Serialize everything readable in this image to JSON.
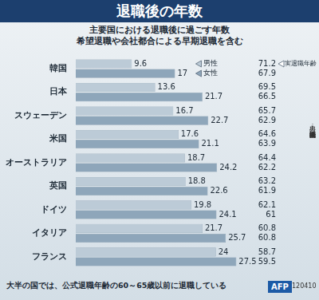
{
  "chart_data": {
    "type": "bar",
    "orientation": "horizontal",
    "title": "退職後の年数",
    "subtitle": [
      "主要国における退職後に過ごす年数",
      "希望退職や会社都合による早期退職を含む"
    ],
    "categories": [
      "韓国",
      "日本",
      "スウェーデン",
      "米国",
      "オーストラリア",
      "英国",
      "ドイツ",
      "イタリア",
      "フランス"
    ],
    "series": [
      {
        "name": "男性",
        "color": "#bccbd7",
        "values": [
          9.6,
          13.6,
          16.7,
          17.6,
          18.7,
          18.8,
          19.8,
          21.7,
          24
        ]
      },
      {
        "name": "女性",
        "color": "#8ea6ba",
        "values": [
          17,
          21.7,
          22.7,
          21.1,
          24.2,
          22.6,
          24.1,
          25.7,
          27.5
        ]
      }
    ],
    "retirement_age": {
      "label": "実退職年齢",
      "male": [
        71.2,
        69.5,
        65.7,
        64.6,
        64.4,
        63.2,
        62.1,
        60.8,
        58.7
      ],
      "female": [
        67.9,
        66.5,
        62.9,
        63.9,
        62.2,
        61.9,
        61,
        60.8,
        59.5
      ]
    },
    "xlim": [
      0,
      28
    ],
    "data_labels": true,
    "tick_labels": "y",
    "grid": false,
    "footnote": "大半の国では、公式退職年齢の60～65歳以前に退職している",
    "source": "出典：経済協力開発機構",
    "credit": "AFP",
    "code": "120410"
  }
}
